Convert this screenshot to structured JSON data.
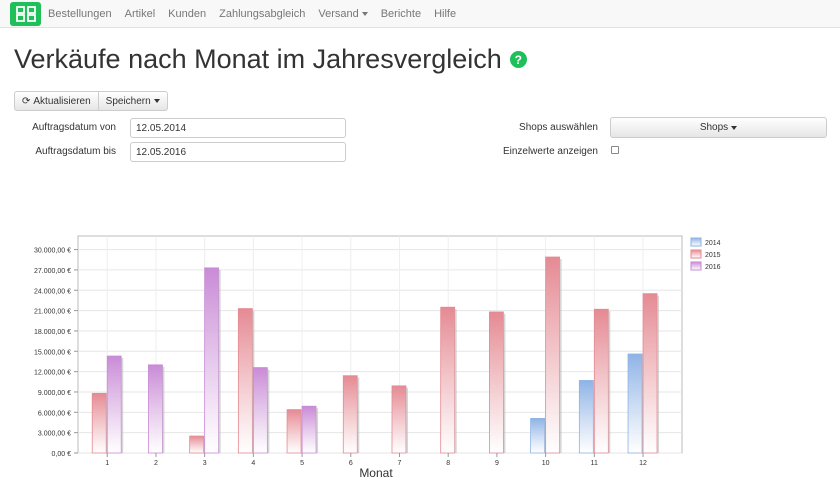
{
  "navbar": {
    "items": [
      {
        "label": "Bestellungen"
      },
      {
        "label": "Artikel"
      },
      {
        "label": "Kunden"
      },
      {
        "label": "Zahlungsabgleich"
      },
      {
        "label": "Versand",
        "dropdown": true
      },
      {
        "label": "Berichte"
      },
      {
        "label": "Hilfe"
      }
    ]
  },
  "page": {
    "title": "Verkäufe nach Monat im Jahresvergleich",
    "help_icon": "?"
  },
  "toolbar": {
    "refresh_label": "Aktualisieren",
    "save_label": "Speichern"
  },
  "filters": {
    "date_from_label": "Auftragsdatum von",
    "date_from_value": "12.05.2014",
    "date_to_label": "Auftragsdatum bis",
    "date_to_value": "12.05.2016",
    "shops_label": "Shops auswählen",
    "shops_button": "Shops",
    "single_values_label": "Einzelwerte anzeigen",
    "single_values_checked": false
  },
  "chart_data": {
    "type": "bar",
    "title": "",
    "xlabel": "Monat",
    "ylabel": "",
    "categories": [
      "1",
      "2",
      "3",
      "4",
      "5",
      "6",
      "7",
      "8",
      "9",
      "10",
      "11",
      "12"
    ],
    "ylim": [
      0,
      32000
    ],
    "yticks": [
      "0,00 €",
      "3.000,00 €",
      "6.000,00 €",
      "9.000,00 €",
      "12.000,00 €",
      "15.000,00 €",
      "18.000,00 €",
      "21.000,00 €",
      "24.000,00 €",
      "27.000,00 €",
      "30.000,00 €"
    ],
    "ytick_values": [
      0,
      3000,
      6000,
      9000,
      12000,
      15000,
      18000,
      21000,
      24000,
      27000,
      30000
    ],
    "legend_position": "top-right",
    "series": [
      {
        "name": "2014",
        "color": "#8fb3e6",
        "values": [
          null,
          null,
          null,
          null,
          null,
          null,
          null,
          null,
          null,
          5100,
          10700,
          14600
        ]
      },
      {
        "name": "2015",
        "color": "#e58a93",
        "values": [
          8800,
          null,
          2500,
          21300,
          6400,
          11400,
          9900,
          21500,
          20800,
          28900,
          21200,
          23500
        ]
      },
      {
        "name": "2016",
        "color": "#c98bd6",
        "values": [
          14300,
          13000,
          27300,
          12600,
          6900,
          null,
          null,
          null,
          null,
          null,
          null,
          null
        ]
      }
    ]
  }
}
